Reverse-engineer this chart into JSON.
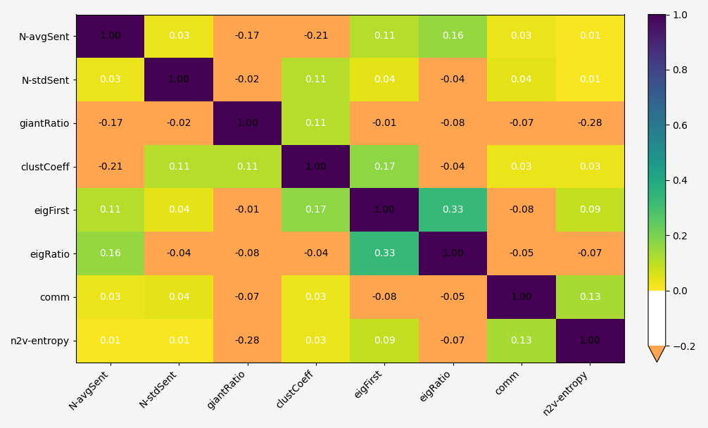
{
  "labels": [
    "N-avgSent",
    "N-stdSent",
    "giantRatio",
    "clustCoeff",
    "eigFirst",
    "eigRatio",
    "comm",
    "n2v-entropy"
  ],
  "matrix": [
    [
      1.0,
      0.03,
      -0.17,
      -0.21,
      0.11,
      0.16,
      0.03,
      0.01
    ],
    [
      0.03,
      1.0,
      -0.02,
      0.11,
      0.04,
      -0.04,
      0.04,
      0.01
    ],
    [
      -0.17,
      -0.02,
      1.0,
      0.11,
      -0.01,
      -0.08,
      -0.07,
      -0.28
    ],
    [
      -0.21,
      0.11,
      0.11,
      1.0,
      0.17,
      -0.04,
      0.03,
      0.03
    ],
    [
      0.11,
      0.04,
      -0.01,
      0.17,
      1.0,
      0.33,
      -0.08,
      0.09
    ],
    [
      0.16,
      -0.04,
      -0.08,
      -0.04,
      0.33,
      1.0,
      -0.05,
      -0.07
    ],
    [
      0.03,
      0.04,
      -0.07,
      0.03,
      -0.08,
      -0.05,
      1.0,
      0.13
    ],
    [
      0.01,
      0.01,
      -0.28,
      0.03,
      0.09,
      -0.07,
      0.13,
      1.0
    ]
  ],
  "vmin": -0.3,
  "vmax": 1.0,
  "colorbar_ticks": [
    1.0,
    0.8,
    0.6,
    0.4,
    0.2,
    0.0,
    -0.2
  ],
  "figsize": [
    10.06,
    6.08
  ],
  "dpi": 100,
  "bg_color": "#f5f5f5"
}
